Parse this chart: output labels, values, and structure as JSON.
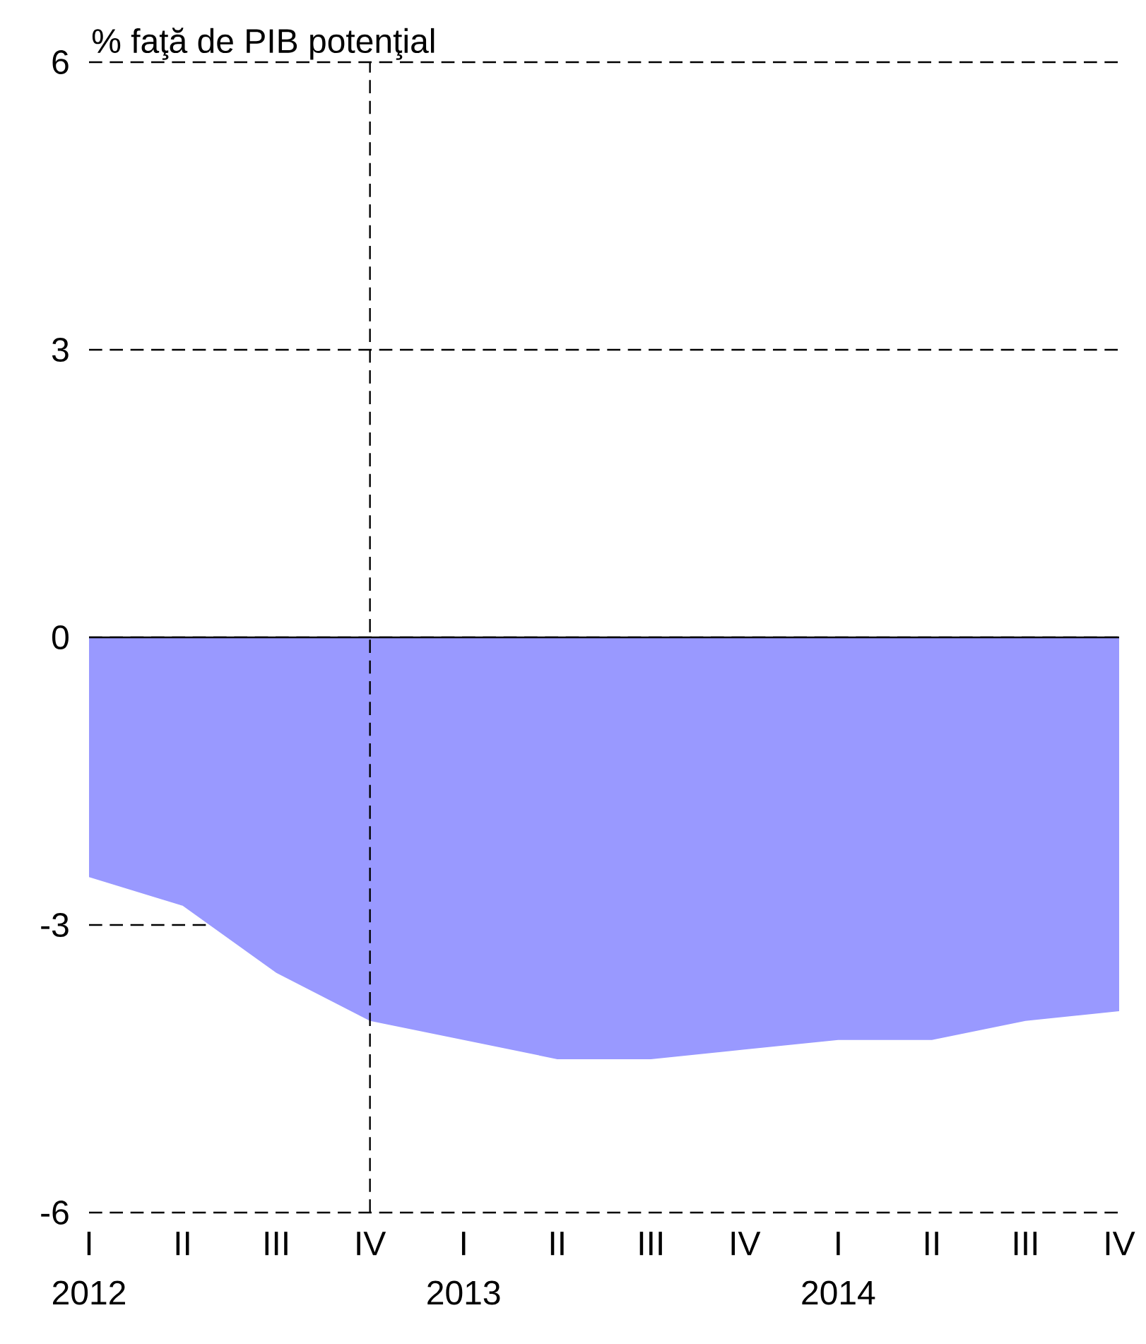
{
  "chart_data": {
    "type": "area",
    "ylabel": "% faţă de PIB potenţial",
    "categories": [
      "I",
      "II",
      "III",
      "IV",
      "I",
      "II",
      "III",
      "IV",
      "I",
      "II",
      "III",
      "IV"
    ],
    "values": [
      -2.5,
      -2.8,
      -3.5,
      -4.0,
      -4.2,
      -4.4,
      -4.4,
      -4.3,
      -4.2,
      -4.2,
      -4.0,
      -3.9
    ],
    "color": "#9999ff",
    "ylim": [
      -6,
      6
    ],
    "yticks": [
      -6,
      -3,
      0,
      3,
      6
    ],
    "grid": "y",
    "line_style": "dashed",
    "ref_lines": [
      {
        "axis": "x",
        "value": "IV",
        "color": "#000000",
        "line_style": "dashed"
      },
      {
        "axis": "y",
        "value": 0,
        "color": "#000000",
        "line_style": "solid"
      }
    ],
    "annotations": [
      "2012",
      "2013",
      "2014"
    ]
  }
}
